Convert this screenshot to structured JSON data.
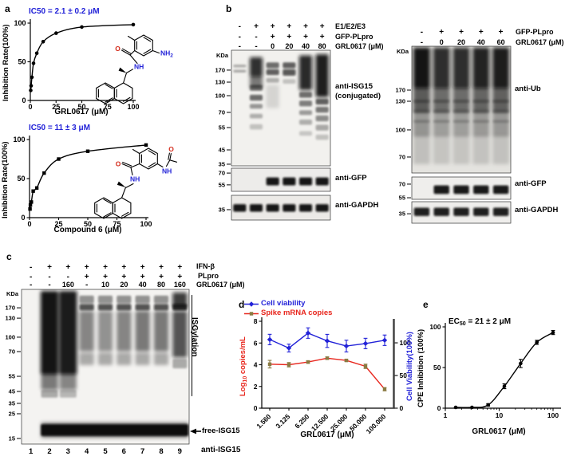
{
  "figure_labels": {
    "a": "a",
    "b": "b",
    "c": "c",
    "d": "d",
    "e": "e"
  },
  "colors": {
    "blue": "#2222d8",
    "red": "#e8261d",
    "olive": "#8a7a42",
    "black": "#000000",
    "struct_o_red": "#d42a1a"
  },
  "chart_data": [
    {
      "id": "a_top",
      "type": "scatter",
      "title": "IC50 = 2.1 ± 0.2 μM",
      "xlabel": "GRL0617 (μM)",
      "ylabel": "Inhibition Rate(100%)",
      "xscale": "linear",
      "xlim": [
        0,
        100
      ],
      "ylim": [
        0,
        100
      ],
      "xticks": [
        0,
        25,
        50,
        75,
        100
      ],
      "yticks": [
        0,
        50,
        100
      ],
      "grid": false,
      "series": [
        {
          "name": "GRL0617 inhibition",
          "color": "#000000",
          "marker": "circle",
          "smooth": true,
          "x": [
            0.39,
            0.78,
            1.56,
            3.125,
            6.25,
            12.5,
            25,
            50,
            100
          ],
          "y": [
            13,
            19,
            30,
            48,
            61,
            76,
            87,
            95,
            98
          ]
        }
      ]
    },
    {
      "id": "a_bottom",
      "type": "scatter",
      "title": "IC50 = 11 ± 3 μM",
      "xlabel": "Compound 6 (μM)",
      "ylabel": "Inhibition Rate(100%)",
      "xscale": "linear",
      "xlim": [
        0,
        100
      ],
      "ylim": [
        0,
        100
      ],
      "xticks": [
        0,
        25,
        50,
        75,
        100
      ],
      "yticks": [
        0,
        50,
        100
      ],
      "grid": false,
      "series": [
        {
          "name": "Compound 6 inhibition",
          "color": "#000000",
          "marker": "square",
          "smooth": true,
          "x": [
            0.39,
            0.78,
            1.56,
            3.125,
            6.25,
            12.5,
            25,
            50,
            100
          ],
          "y": [
            11,
            16,
            20,
            34,
            38,
            57,
            75,
            85,
            93
          ]
        }
      ]
    },
    {
      "id": "d",
      "type": "line",
      "xlabel": "GRL0617 (μM)",
      "ylabel_left": {
        "prefix": "Log",
        "sub": "10",
        "rest": " copies/mL"
      },
      "ylabel_right": "Cell Viability(100%)",
      "categories": [
        "1.560",
        "3.125",
        "6.250",
        "12.500",
        "25.000",
        "50.000",
        "100.000"
      ],
      "ylim_left": [
        0,
        8
      ],
      "yticks_left": [
        0,
        2,
        4,
        6,
        8
      ],
      "ylim_right": [
        0,
        133
      ],
      "yticks_right": [
        0,
        50,
        100
      ],
      "legend_position": "top-left",
      "grid": false,
      "series": [
        {
          "name": "Cell viability",
          "axis": "right",
          "color": "#2222d8",
          "marker": "diamond",
          "values": [
            105,
            92,
            115,
            103,
            95,
            99,
            104
          ],
          "errors": [
            8,
            6,
            8,
            10,
            9,
            8,
            8
          ]
        },
        {
          "name": "Spike mRNA copies",
          "axis": "left",
          "color": "#e8261d",
          "marker": "square",
          "marker_color": "#8a7a42",
          "values": [
            4.05,
            4.0,
            4.25,
            4.6,
            4.4,
            3.85,
            1.75
          ],
          "errors": [
            0.35,
            0.2,
            0.12,
            0.12,
            0.1,
            0.2,
            0.15
          ]
        }
      ]
    },
    {
      "id": "e",
      "type": "scatter",
      "title": {
        "prefix": "EC",
        "sub": "50",
        "rest": " = 21 ± 2 μM"
      },
      "xlabel": "GRL0617 (μM)",
      "ylabel": "CPE Inhibition (100%)",
      "xscale": "log",
      "xlim": [
        1,
        100
      ],
      "ylim": [
        0,
        100
      ],
      "xticks": [
        1,
        10,
        100
      ],
      "yticks": [
        0,
        50,
        100
      ],
      "grid": false,
      "series": [
        {
          "name": "CPE inhibition",
          "color": "#000000",
          "marker": "circle",
          "smooth": true,
          "x": [
            1.56,
            3.125,
            6.25,
            12.5,
            25,
            50,
            100
          ],
          "y": [
            1,
            1,
            4,
            27,
            55,
            81,
            93
          ],
          "errors": [
            0,
            0,
            1.5,
            3,
            5,
            2.5,
            2.5
          ]
        }
      ]
    }
  ],
  "structures": {
    "grl0617": {
      "o": "O",
      "nh": "NH",
      "amine_prefix": "NH",
      "amine_sub": "2"
    },
    "compound6": {
      "o": "O",
      "nh": "NH",
      "acetyl_nh": "NH",
      "acetyl_o": "O"
    }
  },
  "blots": {
    "b_left": {
      "kda_unit": "KDa",
      "header_rows": [
        {
          "values": [
            "-",
            "+",
            "+",
            "+",
            "+",
            "+"
          ],
          "label": "E1/E2/E3"
        },
        {
          "values": [
            "-",
            "-",
            "+",
            "+",
            "+",
            "+"
          ],
          "label": "GFP-PLpro"
        },
        {
          "values": [
            "-",
            "-",
            "0",
            "20",
            "40",
            "80"
          ],
          "label": "GRL0617 (μM)"
        }
      ],
      "panels": [
        {
          "antibody_lines": [
            "anti-ISG15",
            "(conjugated)"
          ],
          "markers": [
            {
              "kda": "170",
              "f": 0.172
            },
            {
              "kda": "130",
              "f": 0.276
            },
            {
              "kda": "100",
              "f": 0.393
            },
            {
              "kda": "70",
              "f": 0.538
            },
            {
              "kda": "55",
              "f": 0.669
            },
            {
              "kda": "45",
              "f": 0.862
            },
            {
              "kda": "35",
              "f": 0.986
            }
          ]
        },
        {
          "antibody_lines": [
            "anti-GFP"
          ],
          "markers": [
            {
              "kda": "70",
              "f": 0.21
            },
            {
              "kda": "55",
              "f": 0.72
            }
          ]
        },
        {
          "antibody_lines": [
            "anti-GAPDH"
          ],
          "markers": [
            {
              "kda": "35",
              "f": 0.58
            }
          ]
        }
      ]
    },
    "b_right": {
      "kda_unit": "KDa",
      "header_rows": [
        {
          "values": [
            "-",
            "+",
            "+",
            "+",
            "+"
          ],
          "label": "GFP-PLpro"
        },
        {
          "values": [
            "-",
            "0",
            "20",
            "40",
            "60"
          ],
          "label": "GRL0617 (μM)"
        }
      ],
      "panels": [
        {
          "antibody_lines": [
            "anti-Ub"
          ],
          "markers": [
            {
              "kda": "170",
              "f": 0.346
            },
            {
              "kda": "130",
              "f": 0.434
            },
            {
              "kda": "100",
              "f": 0.66
            },
            {
              "kda": "70",
              "f": 0.874
            }
          ]
        },
        {
          "antibody_lines": [
            "anti-GFP"
          ],
          "markers": [
            {
              "kda": "70",
              "f": 0.32
            },
            {
              "kda": "55",
              "f": 0.93
            }
          ]
        },
        {
          "antibody_lines": [
            "anti-GAPDH"
          ],
          "markers": [
            {
              "kda": "35",
              "f": 0.56
            }
          ]
        }
      ]
    },
    "c": {
      "kda_unit": "KDa",
      "header_rows": [
        {
          "values": [
            "-",
            "+",
            "+",
            "+",
            "+",
            "+",
            "+",
            "+",
            "+"
          ],
          "label": "IFN-β"
        },
        {
          "values": [
            "-",
            "-",
            "-",
            "+",
            "+",
            "+",
            "+",
            "+",
            "+"
          ],
          "label": "PLpro"
        },
        {
          "values": [
            "-",
            "-",
            "160",
            "-",
            "10",
            "20",
            "40",
            "80",
            "160"
          ],
          "label": "GRL0617 (μM)"
        }
      ],
      "panels": [
        {
          "antibody_lines": [
            "anti-ISG15"
          ],
          "markers": [
            {
              "kda": "170",
              "f": 0.119
            },
            {
              "kda": "130",
              "f": 0.186
            },
            {
              "kda": "100",
              "f": 0.309
            },
            {
              "kda": "70",
              "f": 0.402
            },
            {
              "kda": "55",
              "f": 0.562
            },
            {
              "kda": "45",
              "f": 0.66
            },
            {
              "kda": "35",
              "f": 0.737
            },
            {
              "kda": "25",
              "f": 0.804
            },
            {
              "kda": "15",
              "f": 0.964
            }
          ]
        }
      ],
      "lane_numbers": [
        "1",
        "2",
        "3",
        "4",
        "5",
        "6",
        "7",
        "8",
        "9"
      ],
      "side_label": "ISGylation",
      "arrow_label": "free-ISG15",
      "bottom_label": "anti-ISG15"
    }
  }
}
